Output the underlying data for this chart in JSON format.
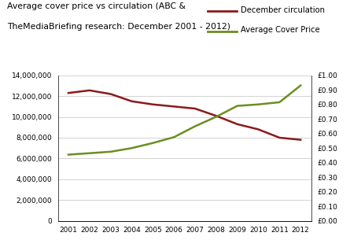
{
  "title_line1": "Average cover price vs circulation (ABC &",
  "title_line2": "TheMediaBriefing research: December 2001 - 2012)",
  "years": [
    2001,
    2002,
    2003,
    2004,
    2005,
    2006,
    2007,
    2008,
    2009,
    2010,
    2011,
    2012
  ],
  "circulation": [
    12300000,
    12550000,
    12200000,
    11500000,
    11200000,
    11000000,
    10800000,
    10100000,
    9300000,
    8800000,
    8000000,
    7800000
  ],
  "cover_price": [
    0.455,
    0.465,
    0.475,
    0.5,
    0.535,
    0.575,
    0.65,
    0.715,
    0.79,
    0.8,
    0.815,
    0.93
  ],
  "circ_color": "#8B1A1A",
  "price_color": "#6B8E23",
  "circ_label": "December circulation",
  "price_label": "Average Cover Price",
  "ylim_left": [
    0,
    14000000
  ],
  "ylim_right": [
    0.0,
    1.0
  ],
  "background_color": "#ffffff",
  "grid_color": "#cccccc"
}
